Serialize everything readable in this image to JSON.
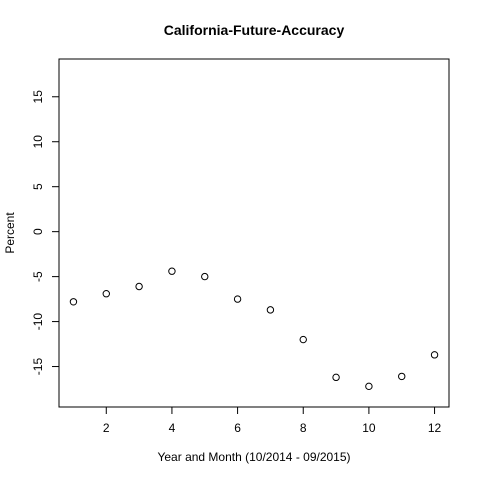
{
  "chart_data": {
    "type": "scatter",
    "title": "California-Future-Accuracy",
    "xlabel": "Year and Month (10/2014 - 09/2015)",
    "ylabel": "Percent",
    "x": [
      1,
      2,
      3,
      4,
      5,
      6,
      7,
      8,
      9,
      10,
      11,
      12
    ],
    "y": [
      -7.8,
      -6.9,
      -6.1,
      -4.4,
      -5.0,
      -7.5,
      -8.7,
      -12.0,
      -16.2,
      -17.2,
      -16.1,
      -13.7
    ],
    "xlim": [
      0.56,
      12.44
    ],
    "ylim": [
      -19.5,
      19.2
    ],
    "x_ticks": [
      2,
      4,
      6,
      8,
      10,
      12
    ],
    "y_ticks": [
      -15,
      -10,
      -5,
      0,
      5,
      10,
      15
    ],
    "x_tick_labels": [
      "2",
      "4",
      "6",
      "8",
      "10",
      "12"
    ],
    "y_tick_labels": [
      "-15",
      "-10",
      "-5",
      "0",
      "5",
      "10",
      "15"
    ],
    "marker": "open-circle",
    "grid": false,
    "legend": "none",
    "colors": {
      "marker": "#000000",
      "axes": "#000000",
      "background": "#ffffff"
    }
  }
}
